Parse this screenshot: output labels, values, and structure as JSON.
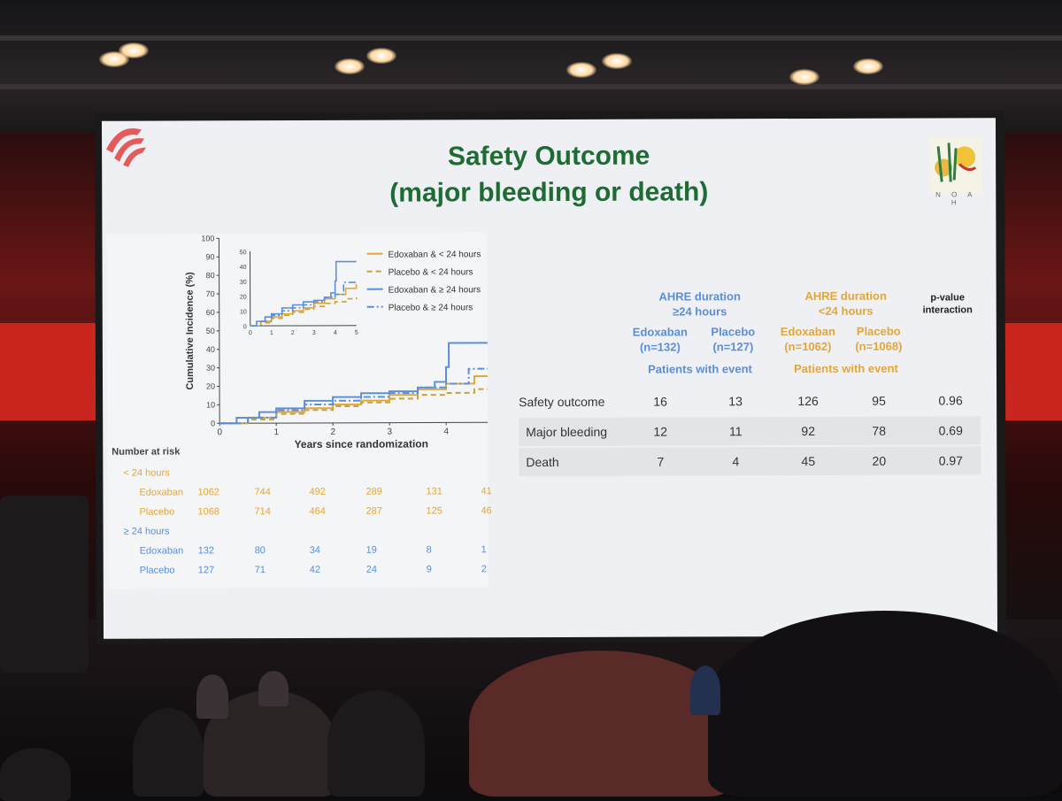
{
  "slide": {
    "title_line1": "Safety Outcome",
    "title_line2": "(major bleeding or death)",
    "logo_text": "N O A H"
  },
  "chart_data": {
    "type": "line",
    "ylabel": "Cumulative Incidence (%)",
    "xlabel": "Years since randomization",
    "xlim": [
      0,
      5
    ],
    "ylim": [
      0,
      100
    ],
    "x_ticks": [
      "0",
      "1",
      "2",
      "3",
      "4",
      "5"
    ],
    "y_ticks": [
      "0",
      "10",
      "20",
      "30",
      "40",
      "50",
      "60",
      "70",
      "80",
      "90",
      "100"
    ],
    "inset_y_ticks": [
      "0",
      "10",
      "20",
      "30",
      "40",
      "50"
    ],
    "inset_x_ticks": [
      "0",
      "1",
      "2",
      "3",
      "4",
      "5"
    ],
    "legend_position": "top-right",
    "series": [
      {
        "name": "Edoxaban & < 24 hours",
        "color": "#e3a63a",
        "dash": "solid",
        "points": [
          [
            0,
            0
          ],
          [
            0.5,
            3
          ],
          [
            1,
            6
          ],
          [
            1.5,
            8
          ],
          [
            2,
            10
          ],
          [
            2.5,
            12
          ],
          [
            3,
            15
          ],
          [
            3.5,
            18
          ],
          [
            4,
            21
          ],
          [
            4.5,
            25
          ],
          [
            5,
            28
          ]
        ]
      },
      {
        "name": "Placebo & < 24 hours",
        "color": "#c9a23a",
        "dash": "dashed",
        "points": [
          [
            0,
            0
          ],
          [
            0.5,
            2
          ],
          [
            1,
            5
          ],
          [
            1.5,
            7
          ],
          [
            2,
            9
          ],
          [
            2.5,
            11
          ],
          [
            3,
            13
          ],
          [
            3.5,
            15
          ],
          [
            4,
            16
          ],
          [
            4.5,
            18
          ],
          [
            5,
            19
          ]
        ]
      },
      {
        "name": "Edoxaban & ≥ 24 hours",
        "color": "#5b8fd8",
        "dash": "solid",
        "points": [
          [
            0,
            0
          ],
          [
            0.3,
            3
          ],
          [
            0.7,
            6
          ],
          [
            1,
            8
          ],
          [
            1.5,
            12
          ],
          [
            2,
            14
          ],
          [
            2.5,
            16
          ],
          [
            3,
            17
          ],
          [
            3.5,
            19
          ],
          [
            3.8,
            22
          ],
          [
            4,
            30
          ],
          [
            4.05,
            43
          ],
          [
            5,
            43
          ]
        ]
      },
      {
        "name": "Placebo & ≥ 24 hours",
        "color": "#5b8fd8",
        "dash": "dashdot",
        "points": [
          [
            0,
            0
          ],
          [
            0.5,
            3
          ],
          [
            1,
            7
          ],
          [
            1.5,
            10
          ],
          [
            2,
            12
          ],
          [
            2.5,
            14
          ],
          [
            3,
            16
          ],
          [
            3.5,
            19
          ],
          [
            4,
            21
          ],
          [
            4.4,
            29
          ],
          [
            5,
            29
          ]
        ]
      }
    ]
  },
  "risk_table": {
    "header": "Number at risk",
    "groups": [
      {
        "label": "< 24 hours",
        "color": "#e3a63a",
        "rows": [
          {
            "name": "Edoxaban",
            "values": [
              "1062",
              "744",
              "492",
              "289",
              "131",
              "41"
            ]
          },
          {
            "name": "Placebo",
            "values": [
              "1068",
              "714",
              "464",
              "287",
              "125",
              "46"
            ]
          }
        ]
      },
      {
        "label": "≥ 24 hours",
        "color": "#5b8fd8",
        "rows": [
          {
            "name": "Edoxaban",
            "values": [
              "132",
              "80",
              "34",
              "19",
              "8",
              "1"
            ]
          },
          {
            "name": "Placebo",
            "values": [
              "127",
              "71",
              "42",
              "24",
              "9",
              "2"
            ]
          }
        ]
      }
    ]
  },
  "outcome_table": {
    "group1_title_l1": "AHRE duration",
    "group1_title_l2": "≥24 hours",
    "group2_title_l1": "AHRE duration",
    "group2_title_l2": "<24 hours",
    "pvalue_title_l1": "p-value",
    "pvalue_title_l2": "interaction",
    "arms": [
      {
        "name": "Edoxaban",
        "n": "(n=132)"
      },
      {
        "name": "Placebo",
        "n": "(n=127)"
      },
      {
        "name": "Edoxaban",
        "n": "(n=1062)"
      },
      {
        "name": "Placebo",
        "n": "(n=1068)"
      }
    ],
    "event_label_1": "Patients with event",
    "event_label_2": "Patients with event",
    "rows": [
      {
        "label": "Safety outcome",
        "values": [
          "16",
          "13",
          "126",
          "95",
          "0.96"
        ]
      },
      {
        "label": "Major bleeding",
        "values": [
          "12",
          "11",
          "92",
          "78",
          "0.69"
        ]
      },
      {
        "label": "Death",
        "values": [
          "7",
          "4",
          "45",
          "20",
          "0.97"
        ]
      }
    ]
  }
}
